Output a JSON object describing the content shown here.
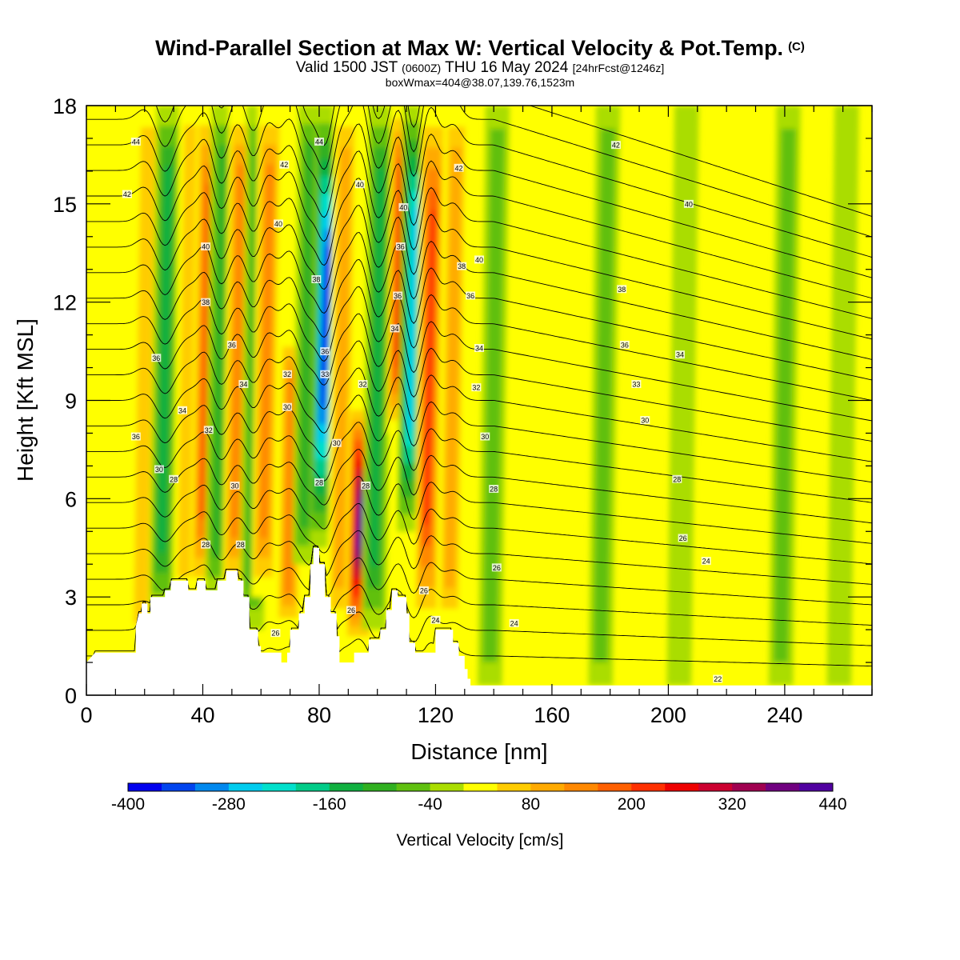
{
  "header": {
    "title": "Wind-Parallel Section at Max W: Vertical Velocity & Pot.Temp.",
    "copyright_mark": "(C)",
    "valid_prefix": "Valid 1500 JST",
    "valid_utc": "(0600Z)",
    "valid_date": "THU 16 May 2024",
    "forecast_tag": "[24hrFcst@1246z]",
    "box_info": "boxWmax=404@38.07,139.76,1523m"
  },
  "chart_data": {
    "type": "heatmap",
    "xlabel": "Distance [nm]",
    "ylabel": "Height [Kft MSL]",
    "xlim": [
      0,
      270
    ],
    "ylim": [
      0,
      18
    ],
    "x_ticks": [
      0,
      40,
      80,
      120,
      160,
      200,
      240
    ],
    "y_ticks": [
      0,
      3,
      6,
      9,
      12,
      15,
      18
    ],
    "colorbar": {
      "label": "Vertical Velocity [cm/s]",
      "min": -400,
      "max": 440,
      "step": 40,
      "tick_labels": [
        -400,
        -280,
        -160,
        -40,
        80,
        200,
        320,
        440
      ],
      "colors": [
        "#0000ee",
        "#0044ee",
        "#0088ee",
        "#00ccee",
        "#00e0cc",
        "#00cc88",
        "#10b040",
        "#30b020",
        "#60c010",
        "#aadd00",
        "#ffff00",
        "#ffcc00",
        "#ffaa00",
        "#ff8800",
        "#ff6000",
        "#ff3000",
        "#ee0000",
        "#cc0030",
        "#a00050",
        "#700080",
        "#5000a0"
      ]
    },
    "updraft_bands": [
      {
        "x": 20,
        "peak": 60,
        "bottom": 1.5,
        "top": 18
      },
      {
        "x": 27,
        "peak": -160,
        "bottom": 2.5,
        "top": 18
      },
      {
        "x": 35,
        "peak": 80,
        "bottom": 3,
        "top": 18
      },
      {
        "x": 41,
        "peak": 200,
        "bottom": 3,
        "top": 18
      },
      {
        "x": 46,
        "peak": -120,
        "bottom": 3,
        "top": 18
      },
      {
        "x": 52,
        "peak": 140,
        "bottom": 3,
        "top": 18
      },
      {
        "x": 58,
        "peak": -120,
        "bottom": 2,
        "top": 18
      },
      {
        "x": 62,
        "peak": 160,
        "bottom": 3,
        "top": 18
      },
      {
        "x": 70,
        "peak": 160,
        "bottom": 2,
        "top": 11
      },
      {
        "x": 76,
        "peak": -120,
        "bottom": 4,
        "top": 18
      },
      {
        "x": 82,
        "peak": -400,
        "bottom": 4.5,
        "top": 18
      },
      {
        "x": 88,
        "peak": 120,
        "bottom": 2,
        "top": 18
      },
      {
        "x": 94,
        "peak": 404,
        "bottom": 1.5,
        "top": 9
      },
      {
        "x": 100,
        "peak": -160,
        "bottom": 2,
        "top": 18
      },
      {
        "x": 108,
        "peak": 280,
        "bottom": 8,
        "top": 18
      },
      {
        "x": 112,
        "peak": -280,
        "bottom": 5,
        "top": 18
      },
      {
        "x": 118,
        "peak": 240,
        "bottom": 2,
        "top": 18
      },
      {
        "x": 126,
        "peak": 120,
        "bottom": 2,
        "top": 18
      },
      {
        "x": 140,
        "peak": -60,
        "bottom": 0.3,
        "top": 18
      },
      {
        "x": 150,
        "peak": 40,
        "bottom": 0.3,
        "top": 18
      },
      {
        "x": 178,
        "peak": -60,
        "bottom": 0.3,
        "top": 18
      },
      {
        "x": 205,
        "peak": -40,
        "bottom": 0.3,
        "top": 18
      },
      {
        "x": 240,
        "peak": -60,
        "bottom": 0.3,
        "top": 18
      },
      {
        "x": 260,
        "peak": -40,
        "bottom": 0.3,
        "top": 18
      }
    ],
    "terrain": [
      [
        0,
        1.0
      ],
      [
        3,
        1.3
      ],
      [
        17,
        1.3
      ],
      [
        17,
        2.1
      ],
      [
        18,
        2.5
      ],
      [
        19,
        2.5
      ],
      [
        19,
        2.8
      ],
      [
        21,
        2.8
      ],
      [
        21,
        2.5
      ],
      [
        22,
        2.5
      ],
      [
        22,
        3.0
      ],
      [
        27,
        3.0
      ],
      [
        27,
        3.2
      ],
      [
        29,
        3.2
      ],
      [
        29,
        3.5
      ],
      [
        35,
        3.5
      ],
      [
        35,
        3.2
      ],
      [
        38,
        3.2
      ],
      [
        38,
        3.5
      ],
      [
        41,
        3.5
      ],
      [
        41,
        3.2
      ],
      [
        45,
        3.2
      ],
      [
        45,
        3.5
      ],
      [
        48,
        3.5
      ],
      [
        48,
        3.8
      ],
      [
        52,
        3.8
      ],
      [
        52,
        3.5
      ],
      [
        54,
        3.5
      ],
      [
        54,
        3.0
      ],
      [
        56,
        3.0
      ],
      [
        56,
        2.0
      ],
      [
        59,
        2.0
      ],
      [
        59,
        1.5
      ],
      [
        60,
        1.5
      ],
      [
        60,
        1.3
      ],
      [
        67,
        1.3
      ],
      [
        67,
        1.0
      ],
      [
        69,
        1.0
      ],
      [
        69,
        1.3
      ],
      [
        70,
        1.3
      ],
      [
        70,
        2.0
      ],
      [
        73,
        2.0
      ],
      [
        73,
        2.5
      ],
      [
        75,
        2.5
      ],
      [
        75,
        3.0
      ],
      [
        77,
        3.0
      ],
      [
        77,
        4.0
      ],
      [
        78,
        4.0
      ],
      [
        78,
        4.5
      ],
      [
        80,
        4.5
      ],
      [
        80,
        4.0
      ],
      [
        82,
        4.0
      ],
      [
        82,
        3.0
      ],
      [
        84,
        3.0
      ],
      [
        84,
        2.5
      ],
      [
        86,
        2.5
      ],
      [
        86,
        1.8
      ],
      [
        87,
        1.8
      ],
      [
        87,
        1.0
      ],
      [
        92,
        1.0
      ],
      [
        92,
        1.3
      ],
      [
        97,
        1.3
      ],
      [
        97,
        1.7
      ],
      [
        101,
        1.7
      ],
      [
        101,
        2.0
      ],
      [
        103,
        2.0
      ],
      [
        103,
        2.6
      ],
      [
        105,
        2.6
      ],
      [
        105,
        3.2
      ],
      [
        107,
        3.2
      ],
      [
        107,
        3.0
      ],
      [
        110,
        3.0
      ],
      [
        110,
        2.5
      ],
      [
        111,
        2.5
      ],
      [
        111,
        1.6
      ],
      [
        113,
        1.6
      ],
      [
        113,
        1.3
      ],
      [
        120,
        1.3
      ],
      [
        120,
        2.0
      ],
      [
        126,
        2.0
      ],
      [
        126,
        1.6
      ],
      [
        128,
        1.6
      ],
      [
        128,
        1.2
      ],
      [
        130,
        1.2
      ],
      [
        130,
        0.8
      ],
      [
        131,
        0.8
      ],
      [
        131,
        0.5
      ],
      [
        132,
        0.5
      ],
      [
        132,
        0.3
      ],
      [
        136,
        0.3
      ],
      [
        136,
        0.3
      ],
      [
        270,
        0.3
      ]
    ],
    "theta_contours": [
      22,
      23,
      24,
      25,
      26,
      27,
      28,
      29,
      30,
      31,
      32,
      33,
      34,
      35,
      36,
      37,
      38,
      39,
      40,
      41,
      42,
      43,
      44
    ],
    "contour_labels": [
      {
        "text": "44",
        "x": 17,
        "y": 16.9
      },
      {
        "text": "42",
        "x": 14,
        "y": 15.3
      },
      {
        "text": "42",
        "x": 68,
        "y": 16.2
      },
      {
        "text": "40",
        "x": 66,
        "y": 14.4
      },
      {
        "text": "40",
        "x": 41,
        "y": 13.7
      },
      {
        "text": "38",
        "x": 41,
        "y": 12.0
      },
      {
        "text": "36",
        "x": 24,
        "y": 10.3
      },
      {
        "text": "36",
        "x": 50,
        "y": 10.7
      },
      {
        "text": "34",
        "x": 33,
        "y": 8.7
      },
      {
        "text": "34",
        "x": 54,
        "y": 9.5
      },
      {
        "text": "32",
        "x": 69,
        "y": 9.8
      },
      {
        "text": "30",
        "x": 69,
        "y": 8.8
      },
      {
        "text": "32",
        "x": 42,
        "y": 8.1
      },
      {
        "text": "36",
        "x": 17,
        "y": 7.9
      },
      {
        "text": "30",
        "x": 25,
        "y": 6.9
      },
      {
        "text": "28",
        "x": 30,
        "y": 6.6
      },
      {
        "text": "30",
        "x": 51,
        "y": 6.4
      },
      {
        "text": "28",
        "x": 41,
        "y": 4.6
      },
      {
        "text": "28",
        "x": 53,
        "y": 4.6
      },
      {
        "text": "26",
        "x": 65,
        "y": 1.9
      },
      {
        "text": "44",
        "x": 80,
        "y": 16.9
      },
      {
        "text": "40",
        "x": 94,
        "y": 15.6
      },
      {
        "text": "40",
        "x": 109,
        "y": 14.9
      },
      {
        "text": "36",
        "x": 108,
        "y": 13.7
      },
      {
        "text": "38",
        "x": 79,
        "y": 12.7
      },
      {
        "text": "36",
        "x": 107,
        "y": 12.2
      },
      {
        "text": "34",
        "x": 106,
        "y": 11.2
      },
      {
        "text": "36",
        "x": 82,
        "y": 10.5
      },
      {
        "text": "33",
        "x": 82,
        "y": 9.8
      },
      {
        "text": "32",
        "x": 95,
        "y": 9.5
      },
      {
        "text": "30",
        "x": 86,
        "y": 7.7
      },
      {
        "text": "28",
        "x": 80,
        "y": 6.5
      },
      {
        "text": "28",
        "x": 96,
        "y": 6.4
      },
      {
        "text": "26",
        "x": 91,
        "y": 2.6
      },
      {
        "text": "26",
        "x": 116,
        "y": 3.2
      },
      {
        "text": "24",
        "x": 120,
        "y": 2.3
      },
      {
        "text": "42",
        "x": 128,
        "y": 16.1
      },
      {
        "text": "42",
        "x": 182,
        "y": 16.8
      },
      {
        "text": "40",
        "x": 135,
        "y": 13.3
      },
      {
        "text": "40",
        "x": 207,
        "y": 15.0
      },
      {
        "text": "38",
        "x": 129,
        "y": 13.1
      },
      {
        "text": "38",
        "x": 184,
        "y": 12.4
      },
      {
        "text": "36",
        "x": 132,
        "y": 12.2
      },
      {
        "text": "36",
        "x": 185,
        "y": 10.7
      },
      {
        "text": "34",
        "x": 135,
        "y": 10.6
      },
      {
        "text": "34",
        "x": 204,
        "y": 10.4
      },
      {
        "text": "33",
        "x": 189,
        "y": 9.5
      },
      {
        "text": "32",
        "x": 134,
        "y": 9.4
      },
      {
        "text": "30",
        "x": 192,
        "y": 8.4
      },
      {
        "text": "30",
        "x": 137,
        "y": 7.9
      },
      {
        "text": "28",
        "x": 140,
        "y": 6.3
      },
      {
        "text": "28",
        "x": 203,
        "y": 6.6
      },
      {
        "text": "26",
        "x": 141,
        "y": 3.9
      },
      {
        "text": "26",
        "x": 205,
        "y": 4.8
      },
      {
        "text": "24",
        "x": 213,
        "y": 4.1
      },
      {
        "text": "24",
        "x": 147,
        "y": 2.2
      },
      {
        "text": "22",
        "x": 217,
        "y": 0.5
      }
    ]
  }
}
